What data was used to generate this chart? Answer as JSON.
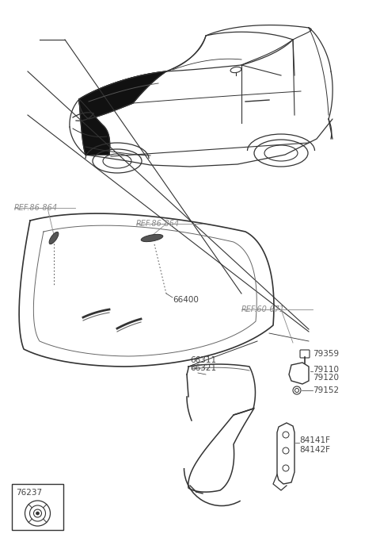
{
  "bg_color": "#ffffff",
  "lc": "#333333",
  "lc_light": "#666666",
  "tc": "#444444",
  "rc": "#888888",
  "fig_width": 4.8,
  "fig_height": 6.97,
  "labels": {
    "ref1": "REF.86-864",
    "ref2": "REF.86-864",
    "ref3": "REF.60-671",
    "p66400": "66400",
    "p66311": "66311",
    "p66321": "66321",
    "p79359": "79359",
    "p79110": "79110",
    "p79120": "79120",
    "p79152": "79152",
    "p84141": "84141F",
    "p84142": "84142F",
    "p76237": "76237"
  }
}
